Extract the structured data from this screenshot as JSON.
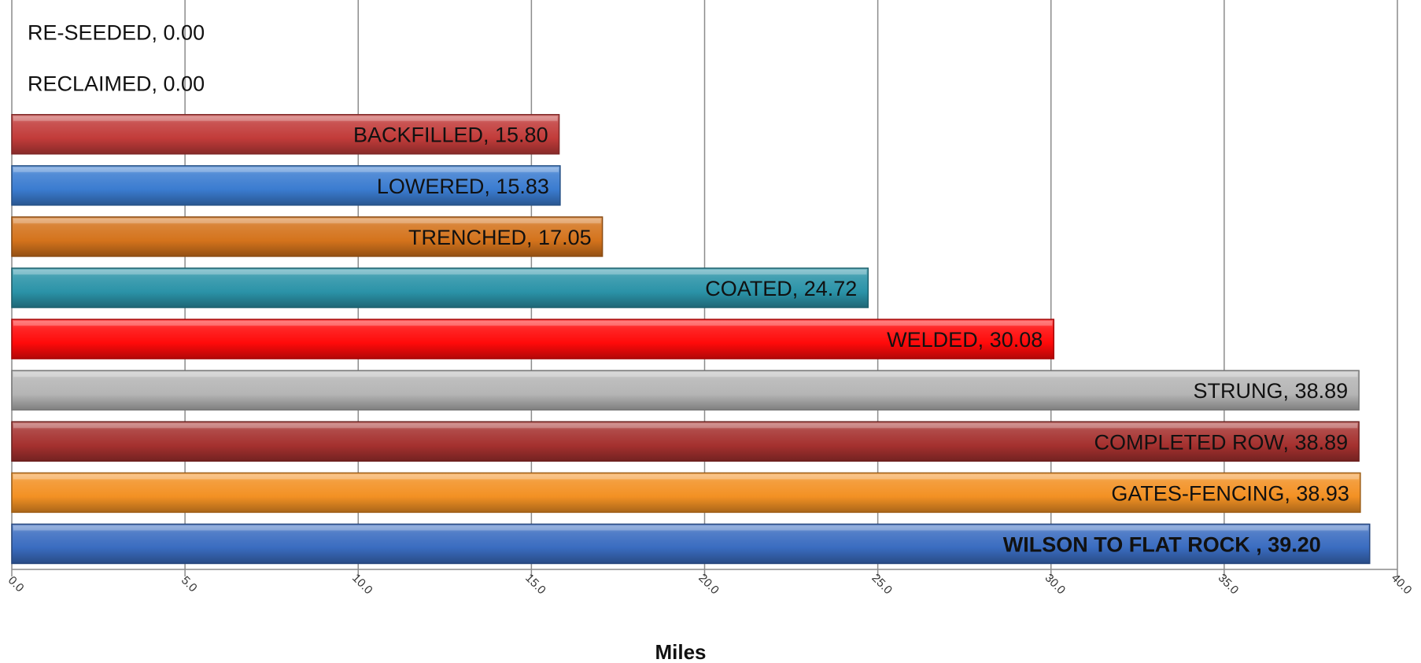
{
  "chart_data": {
    "type": "bar",
    "orientation": "horizontal",
    "title": "",
    "xlabel": "Miles",
    "ylabel": "",
    "xlim": [
      0,
      40
    ],
    "xticks": [
      "0.0",
      "5.0",
      "10.0",
      "15.0",
      "20.0",
      "25.0",
      "30.0",
      "35.0",
      "40.0"
    ],
    "grid": true,
    "legend": "none",
    "bars": [
      {
        "category": "WILSON TO FLAT ROCK",
        "value": 39.2,
        "label": "WILSON TO FLAT ROCK , 39.20",
        "color": "#3a6cc0",
        "bold": true
      },
      {
        "category": "GATES-FENCING",
        "value": 38.93,
        "label": "GATES-FENCING, 38.93",
        "color": "#f39124",
        "bold": false
      },
      {
        "category": "COMPLETED ROW",
        "value": 38.89,
        "label": "COMPLETED ROW, 38.89",
        "color": "#a5312f",
        "bold": false
      },
      {
        "category": "STRUNG",
        "value": 38.89,
        "label": "STRUNG, 38.89",
        "color": "#b5b5b5",
        "bold": false
      },
      {
        "category": "WELDED",
        "value": 30.08,
        "label": "WELDED, 30.08",
        "color": "#ff0a0a",
        "bold": false
      },
      {
        "category": "COATED",
        "value": 24.72,
        "label": "COATED, 24.72",
        "color": "#2b93a8",
        "bold": false
      },
      {
        "category": "TRENCHED",
        "value": 17.05,
        "label": "TRENCHED, 17.05",
        "color": "#d4731c",
        "bold": false
      },
      {
        "category": "LOWERED",
        "value": 15.83,
        "label": "LOWERED, 15.83",
        "color": "#3b7cd0",
        "bold": false
      },
      {
        "category": "BACKFILLED",
        "value": 15.8,
        "label": "BACKFILLED, 15.80",
        "color": "#c23c3a",
        "bold": false
      },
      {
        "category": "RECLAIMED",
        "value": 0.0,
        "label": "RECLAIMED, 0.00",
        "color": "#c23c3a",
        "bold": false
      },
      {
        "category": "RE-SEEDED",
        "value": 0.0,
        "label": "RE-SEEDED, 0.00",
        "color": "#3b7cd0",
        "bold": false
      }
    ]
  }
}
